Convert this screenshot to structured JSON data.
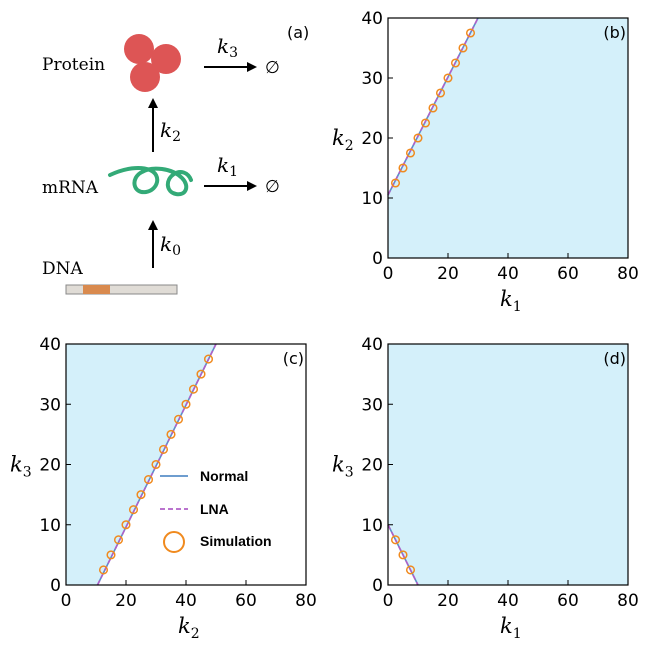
{
  "diagram": {
    "panel_label": "(a)",
    "species": {
      "protein": "Protein",
      "mrna": "mRNA",
      "dna": "DNA"
    },
    "rates": [
      {
        "sym": "k",
        "sub": "3"
      },
      {
        "sym": "k",
        "sub": "2"
      },
      {
        "sym": "k",
        "sub": "1"
      },
      {
        "sym": "k",
        "sub": "0"
      }
    ],
    "empty_set": "∅",
    "colors": {
      "protein": "#dd5555",
      "mrna": "#33aa77",
      "dna_bar": "#e0dcd6",
      "dna_gene": "#d98a4e"
    }
  },
  "chart_data": [
    {
      "panel": "(b)",
      "type": "line",
      "x_sym": "k",
      "x_sub": "1",
      "y_sym": "k",
      "y_sub": "2",
      "xlim": [
        0,
        80
      ],
      "ylim": [
        0,
        40
      ],
      "xticks": [
        0,
        20,
        40,
        60,
        80
      ],
      "yticks": [
        0,
        10,
        20,
        30,
        40
      ],
      "fill_polygon": [
        [
          0,
          10.5
        ],
        [
          30,
          40
        ],
        [
          80,
          40
        ],
        [
          80,
          0
        ],
        [
          0,
          0
        ]
      ],
      "series": [
        {
          "role": "normal",
          "x": [
            0,
            30
          ],
          "y": [
            10.5,
            40
          ]
        },
        {
          "role": "lna",
          "x": [
            0,
            30
          ],
          "y": [
            10.5,
            40
          ]
        },
        {
          "role": "simulation",
          "x": [
            2.5,
            5,
            7.5,
            10,
            12.5,
            15,
            17.5,
            20,
            22.5,
            25,
            27.5
          ],
          "y": [
            12.5,
            15,
            17.5,
            20,
            22.5,
            25,
            27.5,
            30,
            32.5,
            35,
            37.5
          ]
        }
      ],
      "legend": false
    },
    {
      "panel": "(c)",
      "type": "line",
      "x_sym": "k",
      "x_sub": "2",
      "y_sym": "k",
      "y_sub": "3",
      "xlim": [
        0,
        80
      ],
      "ylim": [
        0,
        40
      ],
      "xticks": [
        0,
        20,
        40,
        60,
        80
      ],
      "yticks": [
        0,
        10,
        20,
        30,
        40
      ],
      "fill_polygon": [
        [
          0,
          0
        ],
        [
          10.5,
          0
        ],
        [
          50,
          40
        ],
        [
          0,
          40
        ]
      ],
      "series": [
        {
          "role": "normal",
          "x": [
            10.5,
            50
          ],
          "y": [
            0,
            40
          ]
        },
        {
          "role": "lna",
          "x": [
            10.5,
            50
          ],
          "y": [
            0,
            40
          ]
        },
        {
          "role": "simulation",
          "x": [
            12.5,
            15,
            17.5,
            20,
            22.5,
            25,
            27.5,
            30,
            32.5,
            35,
            37.5,
            40,
            42.5,
            45,
            47.5
          ],
          "y": [
            2.5,
            5,
            7.5,
            10,
            12.5,
            15,
            17.5,
            20,
            22.5,
            25,
            27.5,
            30,
            32.5,
            35,
            37.5
          ]
        }
      ],
      "legend": true
    },
    {
      "panel": "(d)",
      "type": "line",
      "x_sym": "k",
      "x_sub": "1",
      "y_sym": "k",
      "y_sub": "3",
      "xlim": [
        0,
        80
      ],
      "ylim": [
        0,
        40
      ],
      "xticks": [
        0,
        20,
        40,
        60,
        80
      ],
      "yticks": [
        0,
        10,
        20,
        30,
        40
      ],
      "fill_polygon": [
        [
          0,
          10
        ],
        [
          10,
          0
        ],
        [
          80,
          0
        ],
        [
          80,
          40
        ],
        [
          0,
          40
        ]
      ],
      "series": [
        {
          "role": "normal",
          "x": [
            0,
            10
          ],
          "y": [
            10,
            0
          ]
        },
        {
          "role": "lna",
          "x": [
            0,
            10
          ],
          "y": [
            10,
            0
          ]
        },
        {
          "role": "simulation",
          "x": [
            2.5,
            5,
            7.5
          ],
          "y": [
            7.5,
            5,
            2.5
          ]
        }
      ],
      "legend": false
    }
  ],
  "legend": {
    "items": [
      {
        "label": "Normal",
        "role": "normal"
      },
      {
        "label": "LNA",
        "role": "lna"
      },
      {
        "label": "Simulation",
        "role": "simulation"
      }
    ]
  },
  "colors": {
    "fill": "#d4f0fa",
    "normal": "#5a8fc8",
    "lna": "#b060c8",
    "simulation": "#f08a1e",
    "axis": "#000000"
  }
}
